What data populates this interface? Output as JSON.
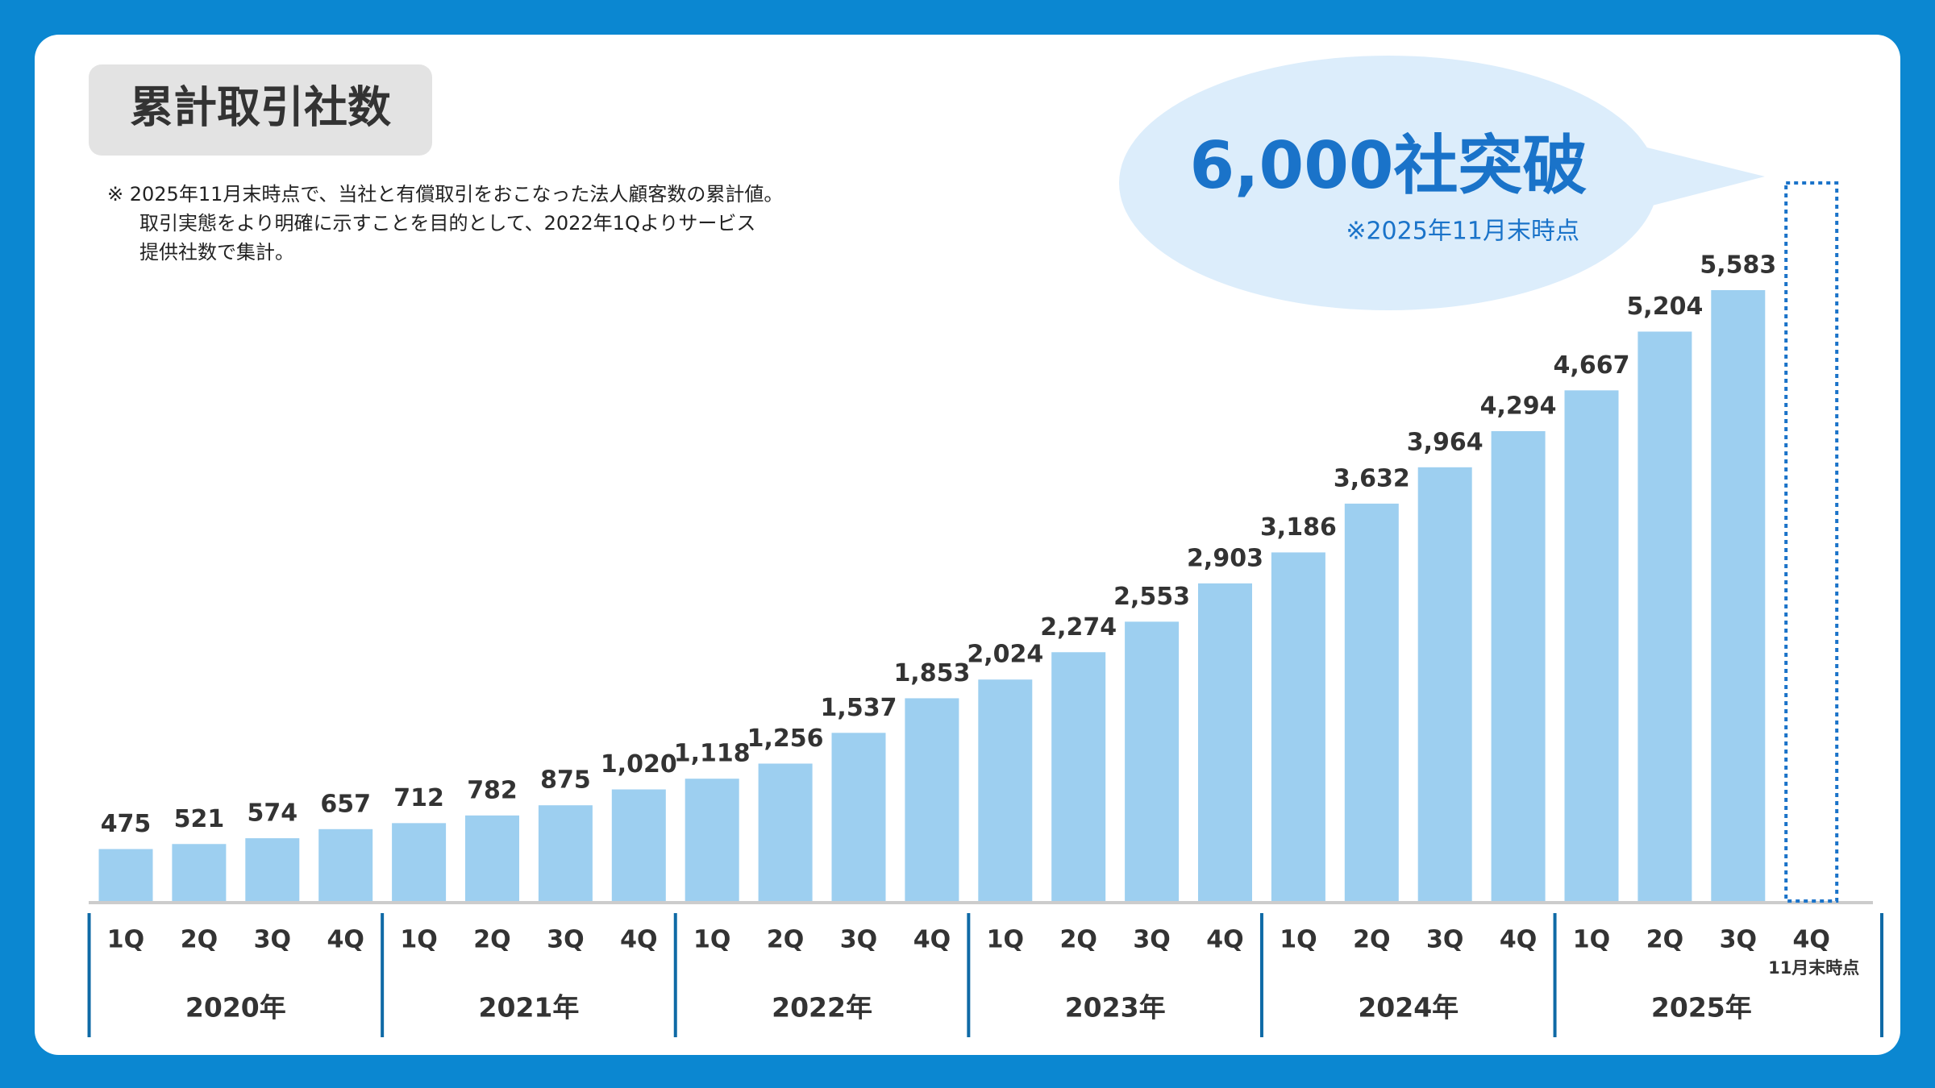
{
  "chart_data": {
    "type": "bar",
    "title": "累計取引社数",
    "note": [
      "※  2025年11月末時点で、当社と有償取引をおこなった法人顧客数の累計値。",
      "取引実態をより明確に示すことを目的として、2022年1Qよりサービス",
      "提供社数で集計。"
    ],
    "callout": {
      "headline": "6,000社突破",
      "subtext": "※2025年11月末時点"
    },
    "categories": [
      "1Q",
      "2Q",
      "3Q",
      "4Q",
      "1Q",
      "2Q",
      "3Q",
      "4Q",
      "1Q",
      "2Q",
      "3Q",
      "4Q",
      "1Q",
      "2Q",
      "3Q",
      "4Q",
      "1Q",
      "2Q",
      "3Q",
      "4Q",
      "1Q",
      "2Q",
      "3Q",
      "4Q"
    ],
    "last_category_note": "11月末時点",
    "groups": [
      "2020年",
      "2021年",
      "2022年",
      "2023年",
      "2024年",
      "2025年"
    ],
    "values": [
      475,
      521,
      574,
      657,
      712,
      782,
      875,
      1020,
      1118,
      1256,
      1537,
      1853,
      2024,
      2274,
      2553,
      2903,
      3186,
      3632,
      3964,
      4294,
      4667,
      5204,
      5583,
      null
    ],
    "value_labels": [
      "475",
      "521",
      "574",
      "657",
      "712",
      "782",
      "875",
      "1,020",
      "1,118",
      "1,256",
      "1,537",
      "1,853",
      "2,024",
      "2,274",
      "2,553",
      "2,903",
      "3,186",
      "3,632",
      "3,964",
      "4,294",
      "4,667",
      "5,204",
      "5,583",
      null
    ],
    "color": "#9dcff0"
  }
}
